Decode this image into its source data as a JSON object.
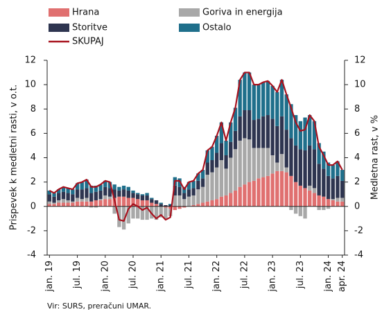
{
  "chart_data": {
    "type": "bar",
    "stacked": true,
    "y_label": "Prispevek k medletni rasti, v o.t.",
    "y2_label": "Medletna rast, v %",
    "source": "Vir: SURS, preračuni UMAR.",
    "categories": [
      "jan. 19",
      null,
      null,
      null,
      null,
      null,
      "jul. 19",
      null,
      null,
      null,
      null,
      null,
      "jan. 20",
      null,
      null,
      null,
      null,
      null,
      "jul. 20",
      null,
      null,
      null,
      null,
      null,
      "jan. 21",
      null,
      null,
      null,
      null,
      null,
      "jul. 21",
      null,
      null,
      null,
      null,
      null,
      "jan. 22",
      null,
      null,
      null,
      null,
      null,
      "jul. 22",
      null,
      null,
      null,
      null,
      null,
      "jan. 23",
      null,
      null,
      null,
      null,
      null,
      "jul. 23",
      null,
      null,
      null,
      null,
      null,
      "jan. 24",
      null,
      null,
      "apr. 24"
    ],
    "ylim": [
      -4,
      12
    ],
    "yticks": [
      -4,
      -2,
      0,
      2,
      4,
      6,
      8,
      10,
      12
    ],
    "y2lim": [
      -4,
      12
    ],
    "y2ticks": [
      -4,
      -2,
      0,
      2,
      4,
      6,
      8,
      10,
      12
    ],
    "series": [
      {
        "name": "Hrana",
        "color": "#e07070",
        "values": [
          0.2,
          0.2,
          0.3,
          0.3,
          0.3,
          0.3,
          0.4,
          0.4,
          0.4,
          0.4,
          0.5,
          0.5,
          0.6,
          0.6,
          0.7,
          0.8,
          0.8,
          0.7,
          0.7,
          0.6,
          0.5,
          0.5,
          0.3,
          0.2,
          0.0,
          -0.1,
          -0.2,
          -0.3,
          -0.2,
          -0.1,
          0.0,
          0.1,
          0.2,
          0.3,
          0.4,
          0.5,
          0.6,
          0.8,
          0.9,
          1.1,
          1.3,
          1.6,
          1.8,
          2.0,
          2.1,
          2.3,
          2.4,
          2.5,
          2.7,
          2.9,
          2.9,
          2.8,
          2.5,
          2.0,
          1.7,
          1.5,
          1.3,
          1.1,
          0.9,
          0.8,
          0.6,
          0.5,
          0.4,
          0.4
        ]
      },
      {
        "name": "Goriva in energija",
        "color": "#a8a8a8",
        "values": [
          0.2,
          0.1,
          0.2,
          0.3,
          0.2,
          0.1,
          0.3,
          0.2,
          0.3,
          -0.1,
          -0.1,
          0.1,
          0.3,
          0.2,
          -0.6,
          -1.7,
          -1.9,
          -1.4,
          -1.0,
          -1.0,
          -1.1,
          -1.1,
          -1.0,
          -1.1,
          -0.9,
          -0.9,
          -0.6,
          0.9,
          0.9,
          0.6,
          0.8,
          0.8,
          1.2,
          1.3,
          2.2,
          2.3,
          2.6,
          3.0,
          2.2,
          2.9,
          3.4,
          3.8,
          3.8,
          3.5,
          2.7,
          2.5,
          2.4,
          2.3,
          1.5,
          0.7,
          1.4,
          0.4,
          -0.3,
          -0.6,
          -0.8,
          -1.0,
          0.4,
          0.4,
          -0.3,
          -0.3,
          -0.2,
          0.1,
          0.3,
          0.3
        ]
      },
      {
        "name": "Storitve",
        "color": "#2e3550",
        "values": [
          0.6,
          0.5,
          0.6,
          0.6,
          0.6,
          0.6,
          0.7,
          0.8,
          0.8,
          0.7,
          0.7,
          0.7,
          0.7,
          0.7,
          0.7,
          0.5,
          0.6,
          0.6,
          0.4,
          0.4,
          0.4,
          0.4,
          0.3,
          0.3,
          0.2,
          0.1,
          0.1,
          0.8,
          0.7,
          0.5,
          0.6,
          0.6,
          0.7,
          0.7,
          1.0,
          1.0,
          1.2,
          1.4,
          1.1,
          1.3,
          1.5,
          2.0,
          2.3,
          2.4,
          2.3,
          2.4,
          2.6,
          2.7,
          3.0,
          3.0,
          3.1,
          3.1,
          3.1,
          3.0,
          3.0,
          3.1,
          3.3,
          3.2,
          2.6,
          2.3,
          1.9,
          1.7,
          1.8,
          1.4
        ]
      },
      {
        "name": "Ostalo",
        "color": "#1f6f8b",
        "values": [
          0.3,
          0.3,
          0.3,
          0.4,
          0.4,
          0.4,
          0.5,
          0.6,
          0.7,
          0.6,
          0.5,
          0.5,
          0.5,
          0.5,
          0.4,
          0.3,
          0.3,
          0.3,
          0.2,
          0.1,
          0.1,
          0.2,
          0.1,
          0.0,
          0.1,
          0.0,
          0.1,
          0.7,
          0.7,
          0.5,
          0.6,
          0.6,
          0.6,
          0.7,
          1.0,
          1.1,
          1.4,
          1.7,
          1.2,
          1.6,
          1.9,
          3.0,
          3.1,
          3.1,
          2.9,
          2.8,
          2.8,
          2.8,
          2.7,
          2.8,
          3.0,
          2.9,
          2.8,
          2.5,
          2.3,
          2.7,
          2.5,
          2.3,
          1.7,
          1.4,
          1.1,
          1.1,
          1.2,
          0.9
        ]
      },
      {
        "name": "SKUPAJ",
        "type": "line",
        "axis": "y2",
        "color": "#a8121e",
        "values": [
          1.3,
          1.1,
          1.4,
          1.6,
          1.5,
          1.4,
          1.9,
          2.0,
          2.2,
          1.6,
          1.6,
          1.8,
          2.1,
          2.0,
          0.5,
          -1.1,
          -1.2,
          -0.2,
          0.2,
          0.0,
          -0.3,
          -0.1,
          -0.6,
          -1.0,
          -0.7,
          -1.1,
          -0.9,
          2.1,
          2.1,
          1.4,
          2.0,
          2.1,
          2.7,
          3.0,
          4.6,
          4.9,
          5.8,
          6.9,
          5.4,
          6.9,
          8.1,
          10.4,
          11.0,
          11.0,
          10.0,
          10.0,
          10.2,
          10.3,
          9.9,
          9.4,
          10.4,
          9.2,
          8.1,
          6.9,
          6.2,
          6.3,
          7.5,
          7.0,
          4.9,
          4.2,
          3.4,
          3.4,
          3.7,
          3.0
        ]
      }
    ]
  }
}
